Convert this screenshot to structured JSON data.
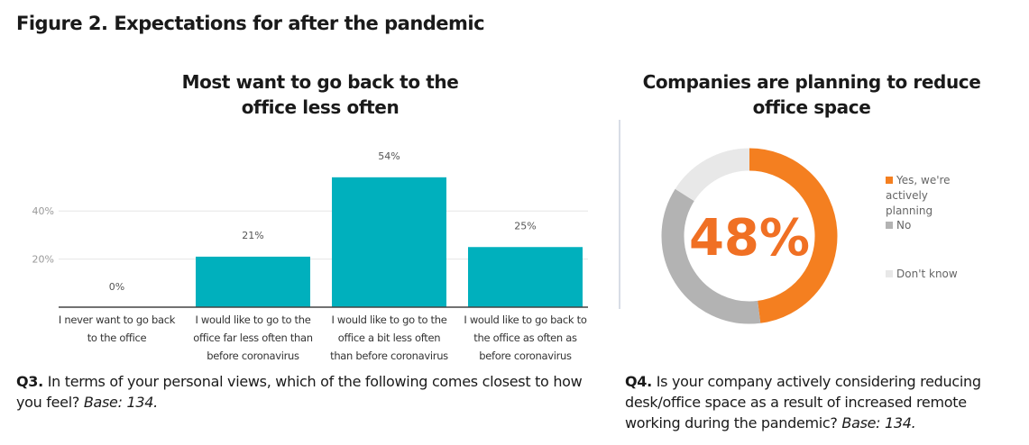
{
  "figure_title": "Figure 2. Expectations for after the pandemic",
  "chart_data": [
    {
      "type": "bar",
      "title": "Most want to go back to the office less often",
      "categories": [
        "I never want to go back to the office",
        "I would like to go to the office far less often than before coronavirus",
        "I would like to go to the office a bit less often than before coronavirus",
        "I would like to go back to the office as often as before coronavirus"
      ],
      "values": [
        0,
        21,
        54,
        25
      ],
      "data_labels": [
        "0%",
        "21%",
        "54%",
        "25%"
      ],
      "yticks": [
        "20%",
        "40%"
      ],
      "ytick_values": [
        20,
        40
      ],
      "ylim": [
        0,
        60
      ],
      "grid": true,
      "color": "#00b0bd",
      "xlabel": "",
      "ylabel": ""
    },
    {
      "type": "pie",
      "title": "Companies are planning to reduce office space",
      "center_label": "48%",
      "labels": [
        "Yes, we're actively planning",
        "No",
        "Don't know"
      ],
      "values": [
        48,
        36,
        16
      ],
      "colors": [
        "#f47f20",
        "#b3b3b3",
        "#e8e8e8"
      ],
      "legend": "right"
    }
  ],
  "q3": {
    "num": "Q3.",
    "text": " In terms of your personal views, which of the following comes closest to how you feel? ",
    "base": "Base: 134."
  },
  "q4": {
    "num": "Q4.",
    "text": " Is your company actively considering reducing desk/office space as a result of increased remote working during the pandemic? ",
    "base": "Base: 134."
  }
}
